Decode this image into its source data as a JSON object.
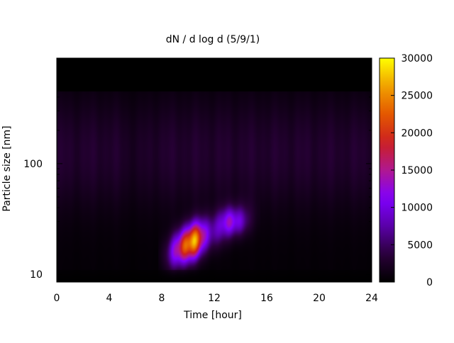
{
  "chart_data": {
    "type": "heatmap",
    "title": "dN / d log d (5/9/1)",
    "xlabel": "Time [hour]",
    "ylabel": "Particle size [nm]",
    "xlim": [
      0,
      24
    ],
    "ylim_nm": [
      8.5,
      900
    ],
    "y_scale": "log",
    "x_ticks": [
      0,
      4,
      8,
      12,
      16,
      20,
      24
    ],
    "x_tick_labels": [
      "0",
      "4",
      "8",
      "12",
      "16",
      "20",
      "24"
    ],
    "y_ticks": [
      10,
      100
    ],
    "y_tick_labels": [
      "10",
      "100"
    ],
    "colorbar": {
      "min": 0,
      "max": 30000,
      "ticks": [
        0,
        5000,
        10000,
        15000,
        20000,
        25000,
        30000
      ],
      "tick_labels": [
        "0",
        "5000",
        "10000",
        "15000",
        "20000",
        "25000",
        "30000"
      ],
      "colormap": [
        "#000000",
        "#2a003a",
        "#5a00a8",
        "#8000ff",
        "#b01890",
        "#cc2020",
        "#e45800",
        "#f0a000",
        "#ffff00"
      ]
    },
    "features": [
      {
        "name": "background",
        "value": 2500
      },
      {
        "name": "growth event",
        "time_start_h": 8.3,
        "time_end_h": 14.5,
        "size_start_nm": 15,
        "size_end_nm": 35,
        "peak_value": 23000,
        "peak_time_h": 10,
        "peak_size_nm": 24
      },
      {
        "name": "secondary mode",
        "time_h": 13.5,
        "size_nm": 30,
        "value": 11000
      }
    ]
  }
}
